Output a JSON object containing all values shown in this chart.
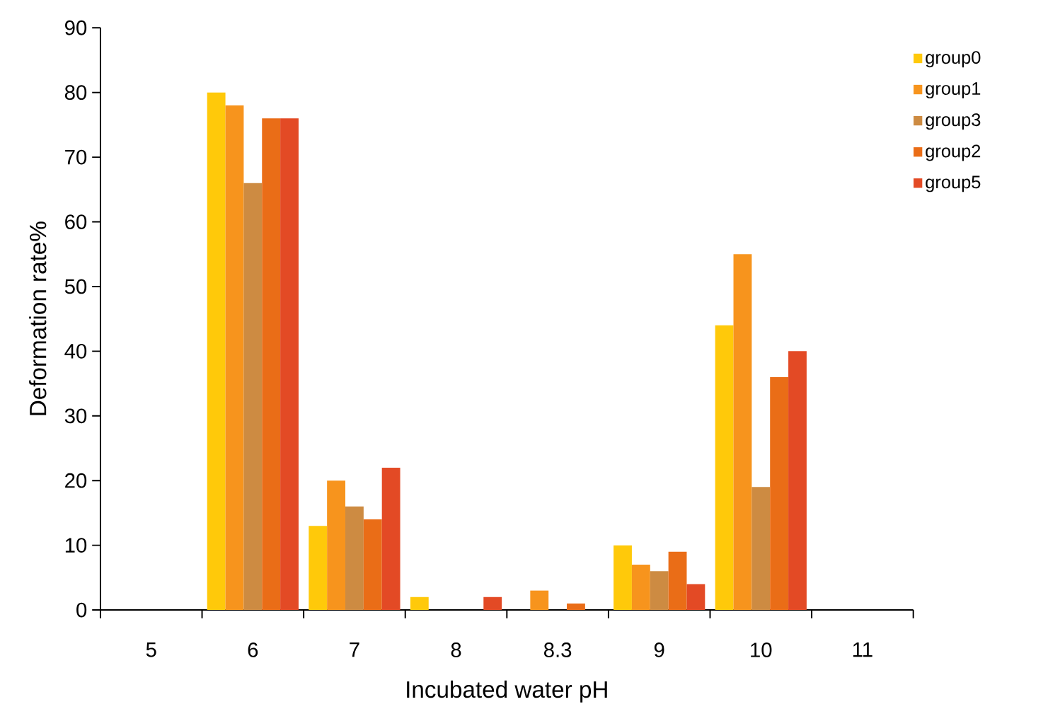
{
  "chart_data": {
    "type": "bar",
    "xlabel": "Incubated water pH",
    "ylabel": "Deformation rate%",
    "categories": [
      "5",
      "6",
      "7",
      "8",
      "8.3",
      "9",
      "10",
      "11"
    ],
    "series": [
      {
        "name": "group0",
        "color": "#ffc90a",
        "values": [
          0,
          80,
          13,
          2,
          0,
          10,
          44,
          0
        ]
      },
      {
        "name": "group1",
        "color": "#f7941d",
        "values": [
          0,
          78,
          20,
          0,
          3,
          7,
          55,
          0
        ]
      },
      {
        "name": "group3",
        "color": "#cd8b42",
        "values": [
          0,
          66,
          16,
          0,
          0,
          6,
          19,
          0
        ]
      },
      {
        "name": "group2",
        "color": "#ea6d17",
        "values": [
          0,
          76,
          14,
          0,
          1,
          9,
          36,
          0
        ]
      },
      {
        "name": "group5",
        "color": "#e34a25",
        "values": [
          0,
          76,
          22,
          2,
          0,
          4,
          40,
          0
        ]
      }
    ],
    "ylim": [
      0,
      90
    ],
    "yticks": [
      0,
      10,
      20,
      30,
      40,
      50,
      60,
      70,
      80,
      90
    ],
    "grid": false,
    "legend": "top right"
  }
}
